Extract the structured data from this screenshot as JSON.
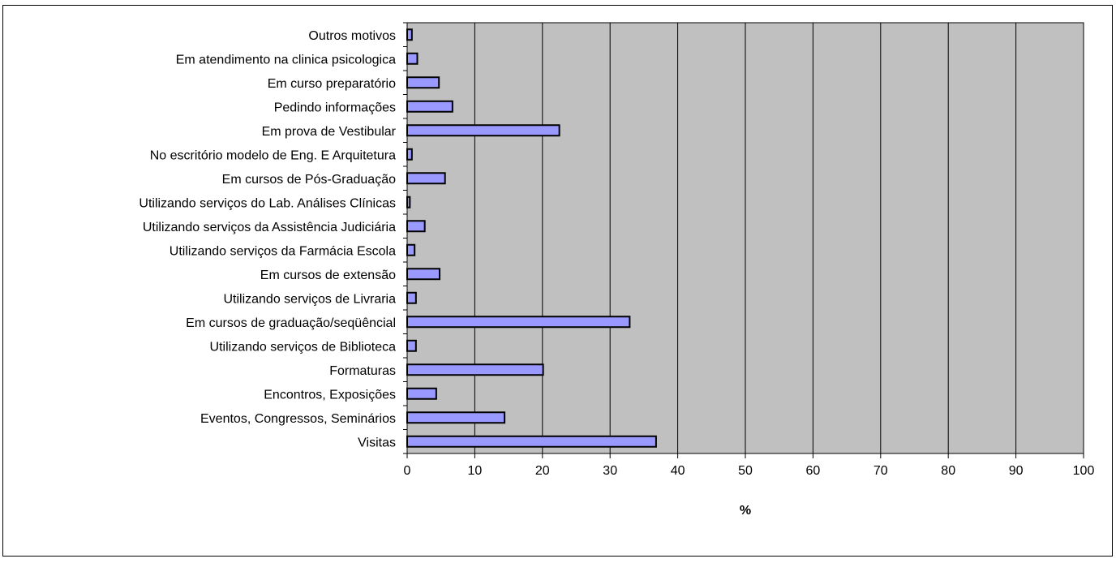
{
  "chart_data": {
    "type": "bar",
    "orientation": "horizontal",
    "title": "",
    "xlabel": "%",
    "ylabel": "",
    "xlim": [
      0,
      100
    ],
    "x_ticks": [
      0,
      10,
      20,
      30,
      40,
      50,
      60,
      70,
      80,
      90,
      100
    ],
    "grid": true,
    "legend": "none",
    "colors": {
      "plot_background": "#c0c0c0",
      "bar_fill": "#9999ff",
      "bar_stroke": "#000000",
      "gridline": "#000000"
    },
    "categories": [
      "Outros motivos",
      "Em atendimento na clinica psicologica",
      "Em curso preparatório",
      "Pedindo informações",
      "Em prova de Vestibular",
      "No escritório modelo de Eng. E Arquitetura",
      "Em cursos de Pós-Graduação",
      "Utilizando serviços do Lab. Análises Clínicas",
      "Utilizando serviços da Assistência Judiciária",
      "Utilizando serviços da Farmácia Escola",
      "Em cursos de extensão",
      "Utilizando serviços de Livraria",
      "Em cursos de graduação/seqüêncial",
      "Utilizando serviços de Biblioteca",
      "Formaturas",
      "Encontros, Exposições",
      "Eventos, Congressos, Seminários",
      "Visitas"
    ],
    "values": [
      0.7,
      1.5,
      4.7,
      6.7,
      22.5,
      0.7,
      5.6,
      0.4,
      2.6,
      1.1,
      4.8,
      1.3,
      32.9,
      1.3,
      20.1,
      4.3,
      14.4,
      36.8
    ]
  }
}
